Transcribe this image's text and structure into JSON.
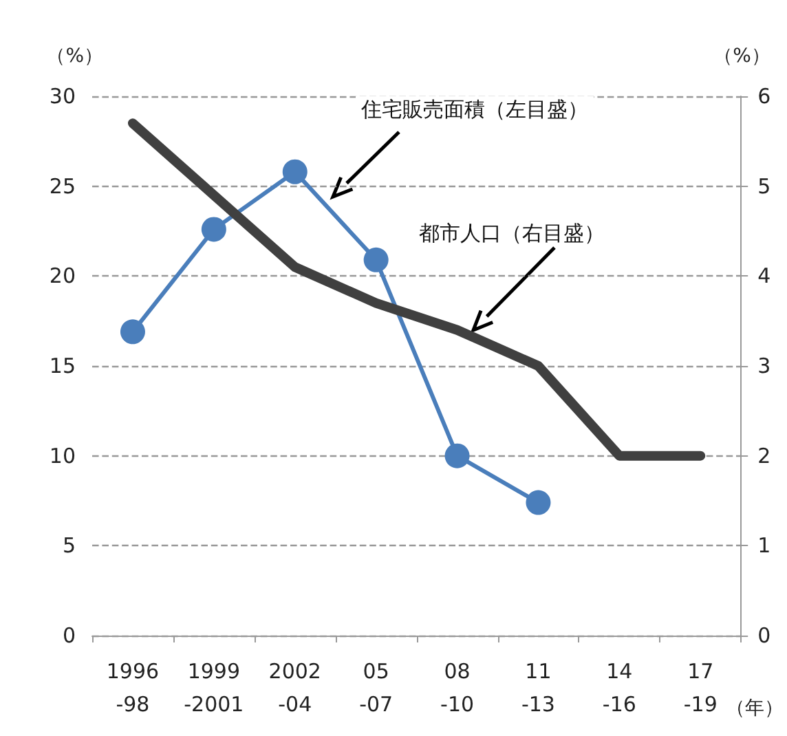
{
  "chart_data": {
    "type": "line",
    "categories": [
      "1996\n-98",
      "1999\n-2001",
      "2002\n-04",
      "05\n-07",
      "08\n-10",
      "11\n-13",
      "14\n-16",
      "17\n-19"
    ],
    "series": [
      {
        "color": "#4a7ebb",
        "marker": "circle",
        "values": [
          16.9,
          22.6,
          25.8,
          20.9,
          10.0,
          7.4,
          null,
          null
        ]
      },
      {
        "color": "#404040",
        "marker": "none",
        "axis": "y2",
        "values": [
          5.7,
          4.9,
          4.1,
          3.7,
          3.4,
          3.0,
          2.0,
          2.0
        ]
      }
    ],
    "ylim": [
      0,
      30
    ],
    "yticks": [
      0,
      5,
      10,
      15,
      20,
      25,
      30
    ],
    "y2lim": [
      0,
      6
    ],
    "y2ticks": [
      0,
      1,
      2,
      3,
      4,
      5,
      6
    ],
    "ylabel": "（%）",
    "y2label": "（%）",
    "xlabel": "（年）",
    "annotations": [
      "住宅販売面積（左目盛）",
      "都市人口（右目盛）"
    ],
    "grid": "y"
  }
}
